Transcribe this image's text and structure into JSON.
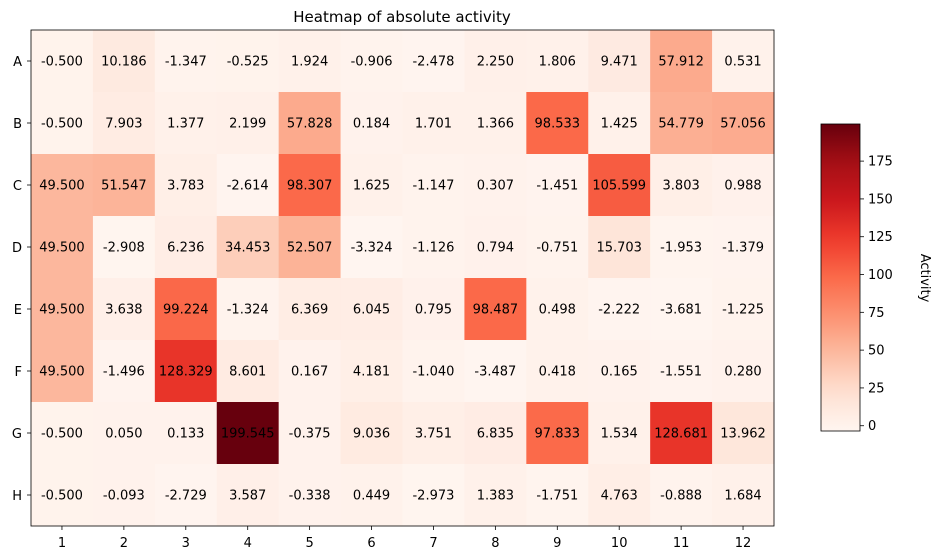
{
  "chart_data": {
    "type": "heatmap",
    "title": "Heatmap of absolute activity",
    "colorbar_label": "Activity",
    "colorbar_range": [
      -3.487,
      199.545
    ],
    "colorbar_ticks": [
      0,
      25,
      50,
      75,
      100,
      125,
      150,
      175
    ],
    "colormap": "Reds",
    "x_categories": [
      "1",
      "2",
      "3",
      "4",
      "5",
      "6",
      "7",
      "8",
      "9",
      "10",
      "11",
      "12"
    ],
    "y_categories": [
      "A",
      "B",
      "C",
      "D",
      "E",
      "F",
      "G",
      "H"
    ],
    "values": [
      [
        -0.5,
        10.186,
        -1.347,
        -0.525,
        1.924,
        -0.906,
        -2.478,
        2.25,
        1.806,
        9.471,
        57.912,
        0.531
      ],
      [
        -0.5,
        7.903,
        1.377,
        2.199,
        57.828,
        0.184,
        1.701,
        1.366,
        98.533,
        1.425,
        54.779,
        57.056
      ],
      [
        49.5,
        51.547,
        3.783,
        -2.614,
        98.307,
        1.625,
        -1.147,
        0.307,
        -1.451,
        105.599,
        3.803,
        0.988
      ],
      [
        49.5,
        -2.908,
        6.236,
        34.453,
        52.507,
        -3.324,
        -1.126,
        0.794,
        -0.751,
        15.703,
        -1.953,
        -1.379
      ],
      [
        49.5,
        3.638,
        99.224,
        -1.324,
        6.369,
        6.045,
        0.795,
        98.487,
        0.498,
        -2.222,
        -3.681,
        -1.225
      ],
      [
        49.5,
        -1.496,
        128.329,
        8.601,
        0.167,
        4.181,
        -1.04,
        -3.487,
        0.418,
        0.165,
        -1.551,
        0.28
      ],
      [
        -0.5,
        0.05,
        0.133,
        199.545,
        -0.375,
        9.036,
        3.751,
        6.835,
        97.833,
        1.534,
        128.681,
        13.962
      ],
      [
        -0.5,
        -0.093,
        -2.729,
        3.587,
        -0.338,
        0.449,
        -2.973,
        1.383,
        -1.751,
        4.763,
        -0.888,
        1.684
      ]
    ],
    "cell_labels": [
      [
        "-0.500",
        "10.186",
        "-1.347",
        "-0.525",
        "1.924",
        "-0.906",
        "-2.478",
        "2.250",
        "1.806",
        "9.471",
        "57.912",
        "0.531"
      ],
      [
        "-0.500",
        "7.903",
        "1.377",
        "2.199",
        "57.828",
        "0.184",
        "1.701",
        "1.366",
        "98.533",
        "1.425",
        "54.779",
        "57.056"
      ],
      [
        "49.500",
        "51.547",
        "3.783",
        "-2.614",
        "98.307",
        "1.625",
        "-1.147",
        "0.307",
        "-1.451",
        "105.599",
        "3.803",
        "0.988"
      ],
      [
        "49.500",
        "-2.908",
        "6.236",
        "34.453",
        "52.507",
        "-3.324",
        "-1.126",
        "0.794",
        "-0.751",
        "15.703",
        "-1.953",
        "-1.379"
      ],
      [
        "49.500",
        "3.638",
        "99.224",
        "-1.324",
        "6.369",
        "6.045",
        "0.795",
        "98.487",
        "0.498",
        "-2.222",
        "-3.681",
        "-1.225"
      ],
      [
        "49.500",
        "-1.496",
        "128.329",
        "8.601",
        "0.167",
        "4.181",
        "-1.040",
        "-3.487",
        "0.418",
        "0.165",
        "-1.551",
        "0.280"
      ],
      [
        "-0.500",
        "0.050",
        "0.133",
        "199.545",
        "-0.375",
        "9.036",
        "3.751",
        "6.835",
        "97.833",
        "1.534",
        "128.681",
        "13.962"
      ],
      [
        "-0.500",
        "-0.093",
        "-2.729",
        "3.587",
        "-0.338",
        "0.449",
        "-2.973",
        "1.383",
        "-1.751",
        "4.763",
        "-0.888",
        "1.684"
      ]
    ]
  }
}
